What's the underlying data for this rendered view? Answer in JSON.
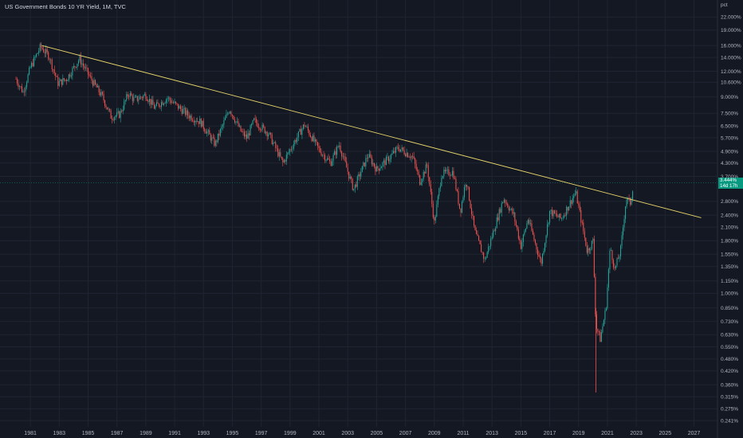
{
  "header": {
    "title": "US Government Bonds 10 YR Yield, 1M, TVC",
    "unit": "pct"
  },
  "colors": {
    "background": "#141823",
    "up": "#26a69a",
    "down": "#ef5350",
    "trendline": "#e8d66a",
    "price_label": "#089981"
  },
  "price_label": {
    "value": "3.444%",
    "countdown": "14d 17h"
  },
  "chart_data": {
    "type": "candlestick",
    "title": "US Government Bonds 10 YR Yield, 1M, TVC",
    "y_scale": "log",
    "y_unit": "pct",
    "y_ticks": [
      "22.000%",
      "19.000%",
      "16.000%",
      "14.000%",
      "12.000%",
      "10.600%",
      "9.000%",
      "7.500%",
      "6.500%",
      "5.700%",
      "4.900%",
      "4.300%",
      "3.700%",
      "2.800%",
      "2.400%",
      "2.100%",
      "1.800%",
      "1.550%",
      "1.350%",
      "1.150%",
      "1.000%",
      "0.850%",
      "0.730%",
      "0.630%",
      "0.550%",
      "0.480%",
      "0.420%",
      "0.360%",
      "0.315%",
      "0.275%",
      "0.241%"
    ],
    "x_ticks": [
      "1981",
      "1983",
      "1985",
      "1987",
      "1989",
      "1991",
      "1993",
      "1995",
      "1997",
      "1999",
      "2001",
      "2003",
      "2005",
      "2007",
      "2009",
      "2011",
      "2013",
      "2015",
      "2017",
      "2019",
      "2021",
      "2023",
      "2025",
      "2027"
    ],
    "x_range": [
      1980.0,
      2027.8
    ],
    "y_range": [
      0.235,
      23.5
    ],
    "series": [
      {
        "x": 1980.0,
        "y": 11.0
      },
      {
        "x": 1980.5,
        "y": 9.5
      },
      {
        "x": 1981.0,
        "y": 12.5
      },
      {
        "x": 1981.7,
        "y": 15.8
      },
      {
        "x": 1982.3,
        "y": 14.2
      },
      {
        "x": 1982.9,
        "y": 10.5
      },
      {
        "x": 1983.5,
        "y": 11.0
      },
      {
        "x": 1984.4,
        "y": 13.8
      },
      {
        "x": 1985.2,
        "y": 11.0
      },
      {
        "x": 1986.0,
        "y": 9.0
      },
      {
        "x": 1986.6,
        "y": 7.2
      },
      {
        "x": 1987.2,
        "y": 7.4
      },
      {
        "x": 1987.8,
        "y": 9.4
      },
      {
        "x": 1988.2,
        "y": 8.7
      },
      {
        "x": 1989.0,
        "y": 9.2
      },
      {
        "x": 1989.6,
        "y": 8.0
      },
      {
        "x": 1990.5,
        "y": 8.9
      },
      {
        "x": 1991.2,
        "y": 8.1
      },
      {
        "x": 1992.0,
        "y": 7.3
      },
      {
        "x": 1992.8,
        "y": 6.8
      },
      {
        "x": 1993.8,
        "y": 5.3
      },
      {
        "x": 1994.8,
        "y": 7.9
      },
      {
        "x": 1995.6,
        "y": 6.1
      },
      {
        "x": 1996.0,
        "y": 5.7
      },
      {
        "x": 1996.5,
        "y": 6.9
      },
      {
        "x": 1997.5,
        "y": 6.0
      },
      {
        "x": 1998.5,
        "y": 4.3
      },
      {
        "x": 1999.4,
        "y": 5.6
      },
      {
        "x": 2000.0,
        "y": 6.6
      },
      {
        "x": 2001.0,
        "y": 5.0
      },
      {
        "x": 2001.8,
        "y": 4.3
      },
      {
        "x": 2002.4,
        "y": 5.3
      },
      {
        "x": 2003.4,
        "y": 3.2
      },
      {
        "x": 2004.4,
        "y": 4.7
      },
      {
        "x": 2005.0,
        "y": 4.0
      },
      {
        "x": 2005.8,
        "y": 4.5
      },
      {
        "x": 2006.5,
        "y": 5.1
      },
      {
        "x": 2007.5,
        "y": 4.6
      },
      {
        "x": 2008.0,
        "y": 3.5
      },
      {
        "x": 2008.5,
        "y": 4.2
      },
      {
        "x": 2009.0,
        "y": 2.2
      },
      {
        "x": 2009.5,
        "y": 3.8
      },
      {
        "x": 2010.3,
        "y": 3.9
      },
      {
        "x": 2010.8,
        "y": 2.5
      },
      {
        "x": 2011.2,
        "y": 3.6
      },
      {
        "x": 2011.8,
        "y": 2.0
      },
      {
        "x": 2012.5,
        "y": 1.45
      },
      {
        "x": 2013.0,
        "y": 1.9
      },
      {
        "x": 2013.8,
        "y": 2.9
      },
      {
        "x": 2014.5,
        "y": 2.4
      },
      {
        "x": 2015.0,
        "y": 1.7
      },
      {
        "x": 2015.5,
        "y": 2.3
      },
      {
        "x": 2016.4,
        "y": 1.4
      },
      {
        "x": 2017.0,
        "y": 2.5
      },
      {
        "x": 2017.8,
        "y": 2.3
      },
      {
        "x": 2018.8,
        "y": 3.1
      },
      {
        "x": 2019.6,
        "y": 1.6
      },
      {
        "x": 2020.0,
        "y": 1.8
      },
      {
        "x": 2020.2,
        "y": 0.7
      },
      {
        "x": 2020.5,
        "y": 0.6
      },
      {
        "x": 2020.9,
        "y": 0.85
      },
      {
        "x": 2021.2,
        "y": 1.7
      },
      {
        "x": 2021.5,
        "y": 1.3
      },
      {
        "x": 2021.9,
        "y": 1.6
      },
      {
        "x": 2022.3,
        "y": 2.9
      },
      {
        "x": 2022.6,
        "y": 2.75
      },
      {
        "x": 2022.8,
        "y": 3.444
      }
    ],
    "trendline": {
      "from": {
        "x": 1981.8,
        "y": 16.0
      },
      "to": {
        "x": 2027.5,
        "y": 2.33
      }
    }
  }
}
